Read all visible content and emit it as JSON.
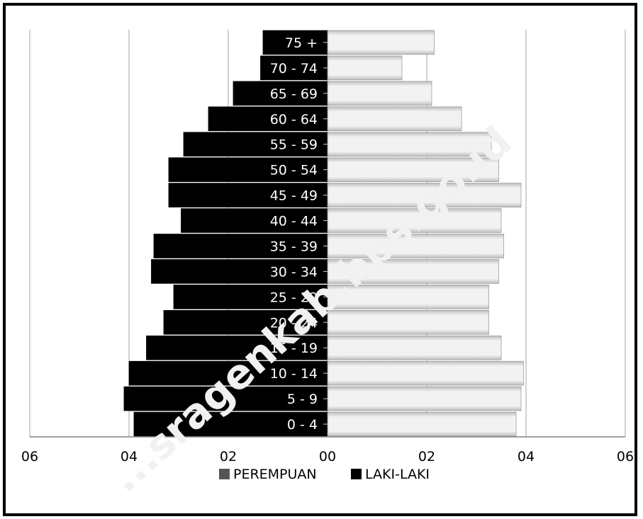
{
  "chart_data": {
    "type": "bar",
    "orientation": "horizontal",
    "categories": [
      "0 - 4",
      "5 - 9",
      "10 - 14",
      "15 - 19",
      "20 - 24",
      "25 - 29",
      "30 - 34",
      "35 - 39",
      "40 - 44",
      "45 - 49",
      "50 - 54",
      "55 - 59",
      "60 - 64",
      "65 - 69",
      "70 - 74",
      "75 +"
    ],
    "series": [
      {
        "name": "PEREMPUAN",
        "side": "right",
        "color": "#e8e8e8",
        "values": [
          3.8,
          3.9,
          3.95,
          3.5,
          3.25,
          3.25,
          3.45,
          3.55,
          3.5,
          3.9,
          3.45,
          3.3,
          2.7,
          2.1,
          1.5,
          2.15
        ]
      },
      {
        "name": "LAKI-LAKI",
        "side": "left",
        "color": "#000000",
        "values": [
          3.9,
          4.1,
          4.0,
          3.65,
          3.3,
          3.1,
          3.55,
          3.5,
          2.95,
          3.2,
          3.2,
          2.9,
          2.4,
          1.9,
          1.35,
          1.3
        ]
      }
    ],
    "x_ticks": [
      -6,
      -4,
      -2,
      0,
      2,
      4,
      6
    ],
    "x_tick_labels": [
      "06",
      "04",
      "02",
      "00",
      "02",
      "04",
      "06"
    ],
    "xlim": [
      -6,
      6
    ],
    "grid": true,
    "legend": {
      "placement": "bottom-center",
      "entries": [
        {
          "label": "PEREMPUAN",
          "color": "#555555"
        },
        {
          "label": "LAKI-LAKI",
          "color": "#000000"
        }
      ]
    },
    "title": "",
    "xlabel": "",
    "ylabel": ""
  },
  "watermark": "...sragenkab.bps.go.id"
}
